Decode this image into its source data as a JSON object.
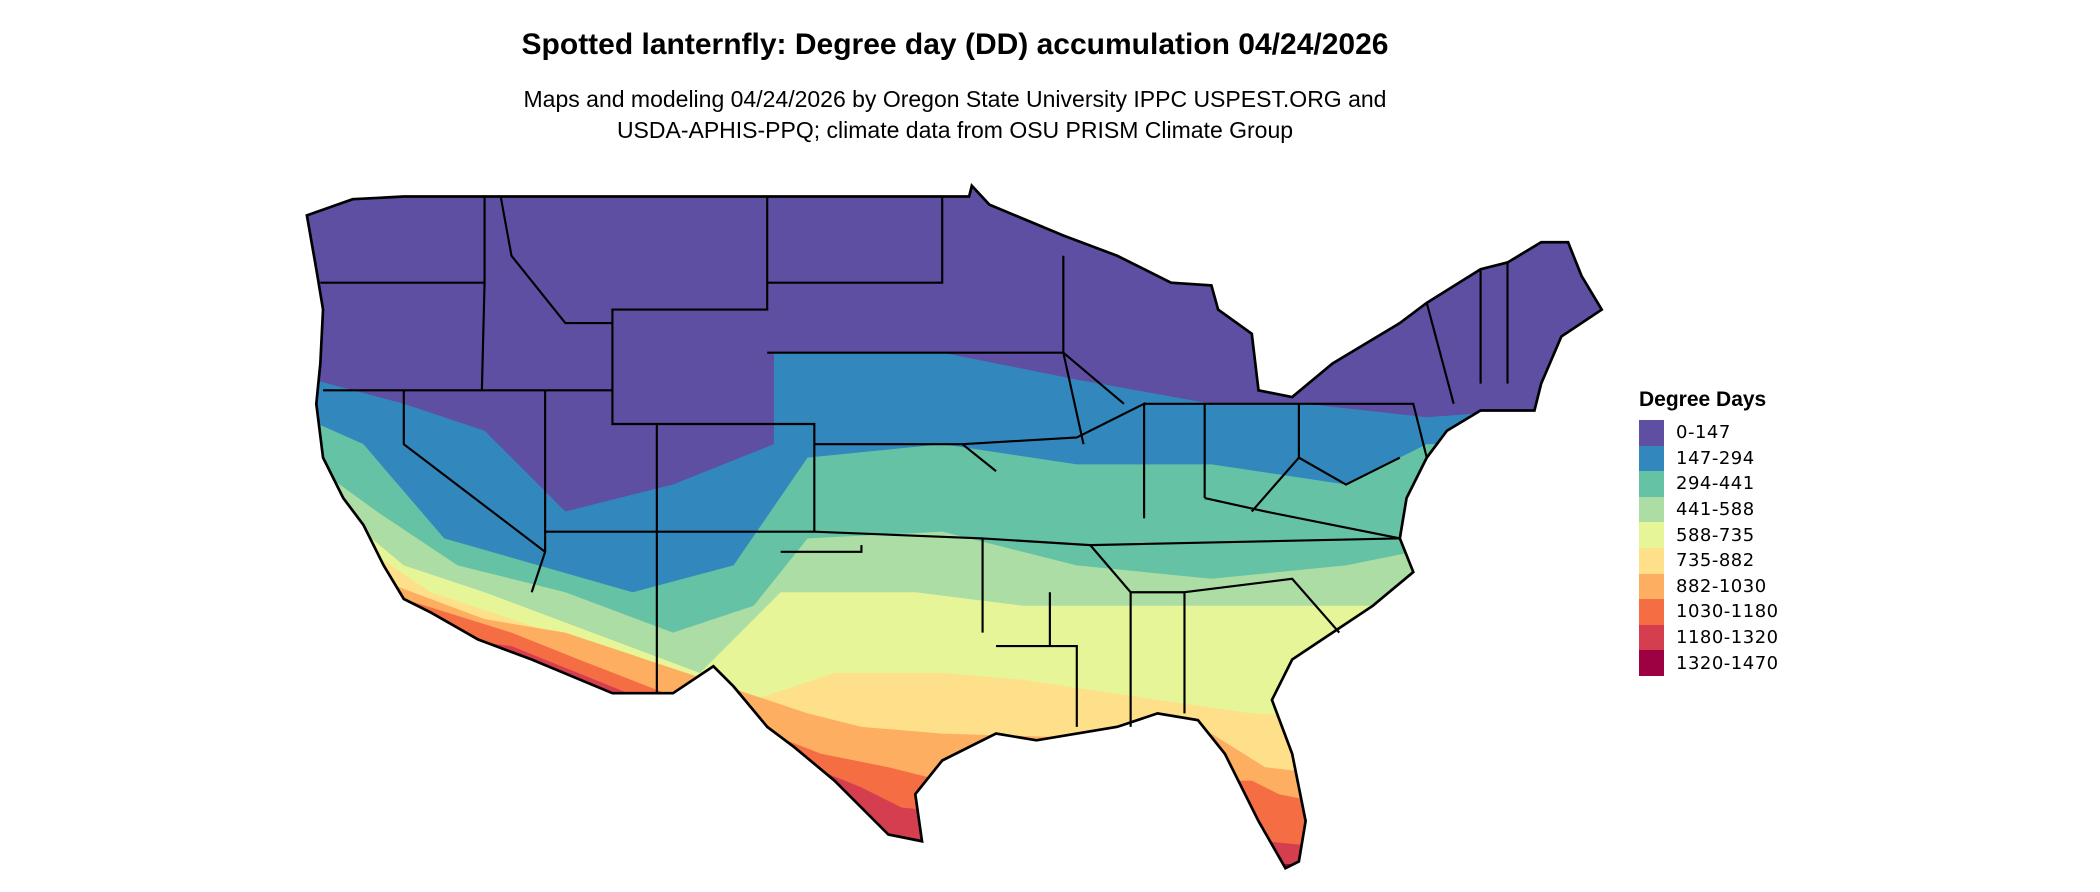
{
  "title": "Spotted lanternfly: Degree day (DD) accumulation 04/24/2026",
  "subtitle": {
    "line1": "Maps and modeling 04/24/2026 by Oregon State University IPPC USPEST.ORG and",
    "line2": "USDA-APHIS-PPQ; climate data from OSU PRISM Climate Group"
  },
  "map": {
    "region": "Contiguous United States",
    "outline_color": "#000000"
  },
  "legend": {
    "title": "Degree Days",
    "items": [
      {
        "label": "0-147",
        "color": "#5E4FA2"
      },
      {
        "label": "147-294",
        "color": "#3288BD"
      },
      {
        "label": "294-441",
        "color": "#66C2A5"
      },
      {
        "label": "441-588",
        "color": "#ABDDA4"
      },
      {
        "label": "588-735",
        "color": "#E6F598"
      },
      {
        "label": "735-882",
        "color": "#FEE08B"
      },
      {
        "label": "882-1030",
        "color": "#FDAE61"
      },
      {
        "label": "1030-1180",
        "color": "#F46D43"
      },
      {
        "label": "1180-1320",
        "color": "#D53E4F"
      },
      {
        "label": "1320-1470",
        "color": "#9E0142"
      }
    ]
  }
}
